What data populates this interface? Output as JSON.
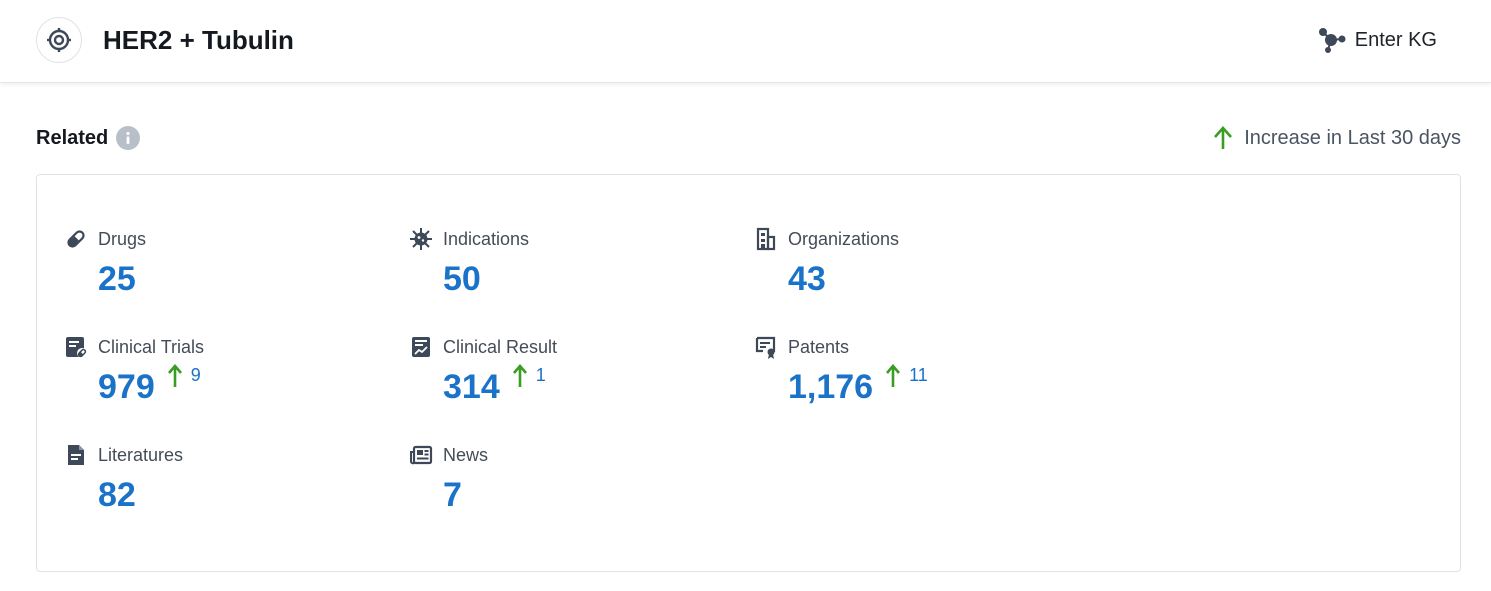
{
  "header": {
    "title": "HER2 + Tubulin",
    "enter_kg_label": "Enter KG"
  },
  "related": {
    "title": "Related",
    "legend_label": "Increase in Last 30 days",
    "colors": {
      "value": "#1b72c9",
      "increase_arrow": "#3a9d23"
    },
    "stats": [
      {
        "label": "Drugs",
        "icon": "pill-icon",
        "value": "25"
      },
      {
        "label": "Indications",
        "icon": "virus-icon",
        "value": "50"
      },
      {
        "label": "Organizations",
        "icon": "building-icon",
        "value": "43"
      },
      {
        "label": "Clinical Trials",
        "icon": "clinical-trials-icon",
        "value": "979",
        "increase": "9"
      },
      {
        "label": "Clinical Result",
        "icon": "chart-report-icon",
        "value": "314",
        "increase": "1"
      },
      {
        "label": "Patents",
        "icon": "certificate-icon",
        "value": "1,176",
        "increase": "11"
      },
      {
        "label": "Literatures",
        "icon": "document-icon",
        "value": "82"
      },
      {
        "label": "News",
        "icon": "newspaper-icon",
        "value": "7"
      }
    ]
  }
}
